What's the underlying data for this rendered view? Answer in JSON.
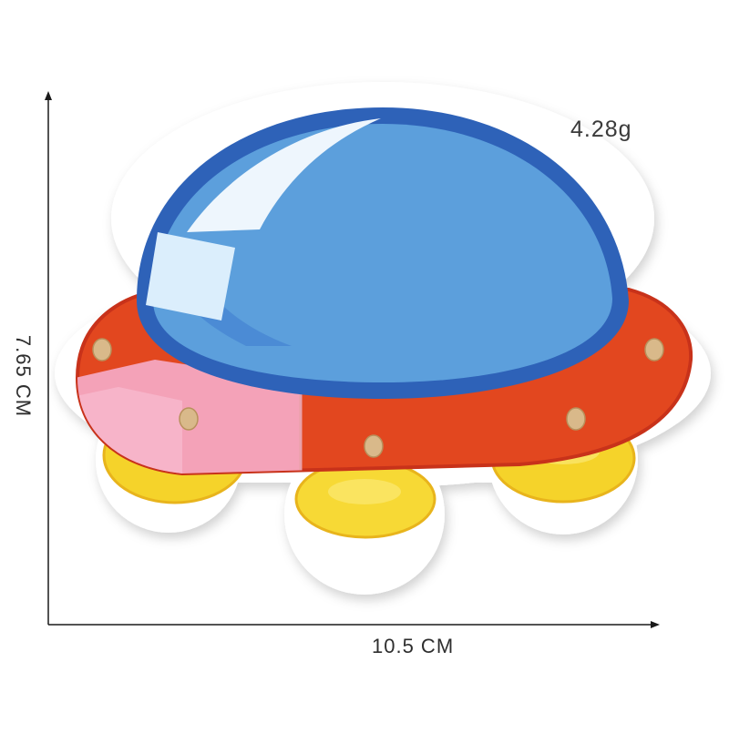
{
  "product": {
    "weight": "4.28g",
    "width_dimension": "10.5 CM",
    "height_dimension": "7.65 CM"
  },
  "colors": {
    "dome": "#5c9fdc",
    "dome_outline": "#2e62b8",
    "saucer_red": "#e2471f",
    "saucer_pink": "#f4a2b8",
    "lights_yellow": "#f5d32a",
    "rivets": "#d9b98a",
    "patch_border": "#ffffff"
  }
}
